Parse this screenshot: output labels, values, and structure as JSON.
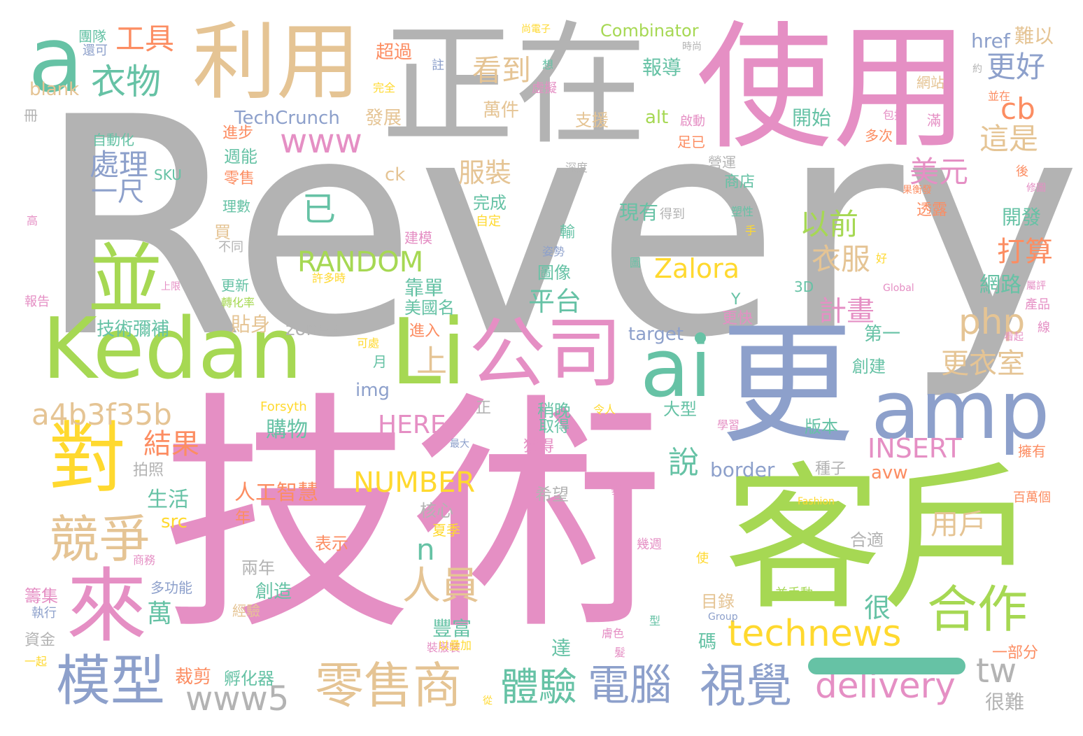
{
  "palette": {
    "gray": "#b3b3b3",
    "pink": "#e58fc4",
    "green": "#a6d853",
    "blue": "#8da0cb",
    "teal": "#66c2a5",
    "tan": "#e5c494",
    "yellow": "#ffd92f",
    "orange": "#fc8d62"
  },
  "words": [
    {
      "text": "Revery",
      "color": "gray"
    },
    {
      "text": "技術",
      "color": "pink"
    },
    {
      "text": "正在",
      "color": "gray"
    },
    {
      "text": "使用",
      "color": "pink"
    },
    {
      "text": "客戶",
      "color": "green"
    },
    {
      "text": "更",
      "color": "blue"
    },
    {
      "text": "利用",
      "color": "tan"
    },
    {
      "text": "Kedan",
      "color": "green"
    },
    {
      "text": "Li",
      "color": "green"
    },
    {
      "text": "公司",
      "color": "pink"
    },
    {
      "text": "ai",
      "color": "teal"
    },
    {
      "text": "amp",
      "color": "blue"
    },
    {
      "text": "a",
      "color": "teal"
    },
    {
      "text": "並",
      "color": "green"
    },
    {
      "text": "對",
      "color": "yellow"
    },
    {
      "text": "來",
      "color": "pink"
    },
    {
      "text": "競爭",
      "color": "tan"
    },
    {
      "text": "模型",
      "color": "blue"
    },
    {
      "text": "零售商",
      "color": "tan"
    },
    {
      "text": "合作",
      "color": "green"
    },
    {
      "text": "視覺",
      "color": "blue"
    },
    {
      "text": "電腦",
      "color": "blue"
    },
    {
      "text": "體驗",
      "color": "teal"
    },
    {
      "text": "technews",
      "color": "yellow"
    },
    {
      "text": "delivery",
      "color": "pink"
    },
    {
      "text": "a4b3f35b",
      "color": "tan"
    },
    {
      "text": "人員",
      "color": "tan"
    },
    {
      "text": "www5",
      "color": "gray"
    },
    {
      "text": "衣物",
      "color": "teal"
    },
    {
      "text": "工具",
      "color": "orange"
    },
    {
      "text": "www",
      "color": "pink"
    },
    {
      "text": "處理",
      "color": "blue"
    },
    {
      "text": "一尺",
      "color": "blue"
    },
    {
      "text": "看到",
      "color": "tan"
    },
    {
      "text": "服裝",
      "color": "tan"
    },
    {
      "text": "美元",
      "color": "pink"
    },
    {
      "text": "以前",
      "color": "green"
    },
    {
      "text": "衣服",
      "color": "tan"
    },
    {
      "text": "更好",
      "color": "blue"
    },
    {
      "text": "這是",
      "color": "tan"
    },
    {
      "text": "打算",
      "color": "orange"
    },
    {
      "text": "cb",
      "color": "orange"
    },
    {
      "text": "RANDOM",
      "color": "green"
    },
    {
      "text": "Zalora",
      "color": "yellow"
    },
    {
      "text": "php",
      "color": "tan"
    },
    {
      "text": "INSERT",
      "color": "pink"
    },
    {
      "text": "NUMBER",
      "color": "yellow"
    },
    {
      "text": "HERE",
      "color": "pink"
    },
    {
      "text": "平台",
      "color": "teal"
    },
    {
      "text": "更衣室",
      "color": "tan"
    },
    {
      "text": "計畫",
      "color": "pink"
    },
    {
      "text": "已",
      "color": "teal"
    },
    {
      "text": "上",
      "color": "tan"
    },
    {
      "text": "結果",
      "color": "orange"
    },
    {
      "text": "說",
      "color": "teal"
    },
    {
      "text": "n",
      "color": "teal"
    },
    {
      "text": "用戶",
      "color": "tan"
    },
    {
      "text": "萬",
      "color": "teal"
    },
    {
      "text": "很",
      "color": "teal"
    },
    {
      "text": "tw",
      "color": "gray"
    },
    {
      "text": "生活",
      "color": "teal"
    },
    {
      "text": "購物",
      "color": "teal"
    },
    {
      "text": "人工智慧",
      "color": "orange"
    },
    {
      "text": "網路",
      "color": "teal"
    },
    {
      "text": "開發",
      "color": "teal"
    },
    {
      "text": "現有",
      "color": "teal"
    },
    {
      "text": "開始",
      "color": "teal"
    },
    {
      "text": "報導",
      "color": "teal"
    },
    {
      "text": "萬件",
      "color": "tan"
    },
    {
      "text": "超過",
      "color": "orange"
    },
    {
      "text": "團隊",
      "color": "teal"
    },
    {
      "text": "還可",
      "color": "blue"
    },
    {
      "text": "Combinator",
      "color": "green"
    },
    {
      "text": "href",
      "color": "blue"
    },
    {
      "text": "難以",
      "color": "tan"
    },
    {
      "text": "TechCrunch",
      "color": "blue"
    },
    {
      "text": "發展",
      "color": "tan"
    },
    {
      "text": "blank",
      "color": "tan"
    },
    {
      "text": "技術彌補",
      "color": "teal"
    },
    {
      "text": "zoneid",
      "color": "gray"
    },
    {
      "text": "target",
      "color": "blue"
    },
    {
      "text": "img",
      "color": "blue"
    },
    {
      "text": "alt",
      "color": "green"
    },
    {
      "text": "border",
      "color": "blue"
    },
    {
      "text": "avw",
      "color": "orange"
    },
    {
      "text": "src",
      "color": "yellow"
    },
    {
      "text": "ck",
      "color": "tan"
    },
    {
      "text": "SKU",
      "color": "teal"
    },
    {
      "text": "完成",
      "color": "teal"
    },
    {
      "text": "支援",
      "color": "tan"
    },
    {
      "text": "週能",
      "color": "teal"
    },
    {
      "text": "零售",
      "color": "orange"
    },
    {
      "text": "理數",
      "color": "teal"
    },
    {
      "text": "自動化",
      "color": "teal"
    },
    {
      "text": "進步",
      "color": "orange"
    },
    {
      "text": "買",
      "color": "tan"
    },
    {
      "text": "貼身",
      "color": "tan"
    },
    {
      "text": "靠單",
      "color": "teal"
    },
    {
      "text": "美國名",
      "color": "teal"
    },
    {
      "text": "第一",
      "color": "teal"
    },
    {
      "text": "更快",
      "color": "pink"
    },
    {
      "text": "Y",
      "color": "teal"
    },
    {
      "text": "創建",
      "color": "teal"
    },
    {
      "text": "版本",
      "color": "teal"
    },
    {
      "text": "大型",
      "color": "teal"
    },
    {
      "text": "稍晚",
      "color": "teal"
    },
    {
      "text": "取得",
      "color": "teal"
    },
    {
      "text": "獲得",
      "color": "pink"
    },
    {
      "text": "圖像",
      "color": "teal"
    },
    {
      "text": "豐富",
      "color": "teal"
    },
    {
      "text": "碼",
      "color": "teal"
    },
    {
      "text": "希望",
      "color": "gray"
    },
    {
      "text": "核心",
      "color": "gray"
    },
    {
      "text": "夏季",
      "color": "yellow"
    },
    {
      "text": "表示",
      "color": "orange"
    },
    {
      "text": "合適",
      "color": "gray"
    },
    {
      "text": "目錄",
      "color": "tan"
    },
    {
      "text": "年",
      "color": "orange"
    },
    {
      "text": "兩年",
      "color": "gray"
    },
    {
      "text": "創造",
      "color": "teal"
    },
    {
      "text": "多功能",
      "color": "blue"
    },
    {
      "text": "經驗",
      "color": "tan"
    },
    {
      "text": "籌集",
      "color": "pink"
    },
    {
      "text": "執行",
      "color": "blue"
    },
    {
      "text": "資金",
      "color": "gray"
    },
    {
      "text": "一起",
      "color": "yellow"
    },
    {
      "text": "裁剪",
      "color": "orange"
    },
    {
      "text": "孵化器",
      "color": "teal"
    },
    {
      "text": "達",
      "color": "teal"
    },
    {
      "text": "很難",
      "color": "gray"
    },
    {
      "text": "一部分",
      "color": "orange"
    },
    {
      "text": "拍照",
      "color": "gray"
    },
    {
      "text": "種子",
      "color": "gray"
    },
    {
      "text": "擁有",
      "color": "orange"
    },
    {
      "text": "百萬個",
      "color": "orange"
    },
    {
      "text": "學習",
      "color": "pink"
    },
    {
      "text": "Forsyth",
      "color": "yellow"
    },
    {
      "text": "正",
      "color": "gray"
    },
    {
      "text": "月",
      "color": "teal"
    },
    {
      "text": "進入",
      "color": "orange"
    },
    {
      "text": "可處",
      "color": "yellow"
    },
    {
      "text": "Fashion",
      "color": "yellow"
    },
    {
      "text": "Global",
      "color": "pink"
    },
    {
      "text": "Group",
      "color": "blue"
    },
    {
      "text": "3D",
      "color": "teal"
    },
    {
      "text": "並手動",
      "color": "green"
    },
    {
      "text": "網站",
      "color": "tan"
    },
    {
      "text": "並在",
      "color": "orange"
    },
    {
      "text": "包括",
      "color": "pink"
    },
    {
      "text": "滿",
      "color": "pink"
    },
    {
      "text": "多次",
      "color": "orange"
    },
    {
      "text": "尚電子",
      "color": "yellow"
    },
    {
      "text": "時尚",
      "color": "gray"
    },
    {
      "text": "想",
      "color": "teal"
    },
    {
      "text": "註",
      "color": "blue"
    },
    {
      "text": "完全",
      "color": "yellow"
    },
    {
      "text": "虛擬",
      "color": "pink"
    },
    {
      "text": "啟動",
      "color": "pink"
    },
    {
      "text": "足已",
      "color": "orange"
    },
    {
      "text": "深度",
      "color": "gray"
    },
    {
      "text": "營運",
      "color": "gray"
    },
    {
      "text": "商店",
      "color": "teal"
    },
    {
      "text": "塑性",
      "color": "teal"
    },
    {
      "text": "透露",
      "color": "orange"
    },
    {
      "text": "修圖",
      "color": "pink"
    },
    {
      "text": "後",
      "color": "orange"
    },
    {
      "text": "果衡發",
      "color": "orange"
    },
    {
      "text": "約",
      "color": "gray"
    },
    {
      "text": "冊",
      "color": "gray"
    },
    {
      "text": "高",
      "color": "pink"
    },
    {
      "text": "報告",
      "color": "pink"
    },
    {
      "text": "上限",
      "color": "pink"
    },
    {
      "text": "更新",
      "color": "teal"
    },
    {
      "text": "轉化率",
      "color": "green"
    },
    {
      "text": "許多時",
      "color": "yellow"
    },
    {
      "text": "不同",
      "color": "gray"
    },
    {
      "text": "建模",
      "color": "pink"
    },
    {
      "text": "得到",
      "color": "gray"
    },
    {
      "text": "自定",
      "color": "yellow"
    },
    {
      "text": "輸",
      "color": "teal"
    },
    {
      "text": "姿勢",
      "color": "blue"
    },
    {
      "text": "手",
      "color": "yellow"
    },
    {
      "text": "好",
      "color": "yellow"
    },
    {
      "text": "圖",
      "color": "teal"
    },
    {
      "text": "產品",
      "color": "pink"
    },
    {
      "text": "線",
      "color": "pink"
    },
    {
      "text": "看起",
      "color": "pink"
    },
    {
      "text": "屬評",
      "color": "pink"
    },
    {
      "text": "令人",
      "color": "yellow"
    },
    {
      "text": "最大",
      "color": "blue"
    },
    {
      "text": "垂",
      "color": "pink"
    },
    {
      "text": "幾週",
      "color": "pink"
    },
    {
      "text": "使",
      "color": "yellow"
    },
    {
      "text": "商務",
      "color": "pink"
    },
    {
      "text": "型",
      "color": "teal"
    },
    {
      "text": "膚色",
      "color": "pink"
    },
    {
      "text": "髮",
      "color": "pink"
    },
    {
      "text": "裝服裝",
      "color": "pink"
    },
    {
      "text": "以疊加",
      "color": "yellow"
    },
    {
      "text": "從",
      "color": "yellow"
    }
  ]
}
